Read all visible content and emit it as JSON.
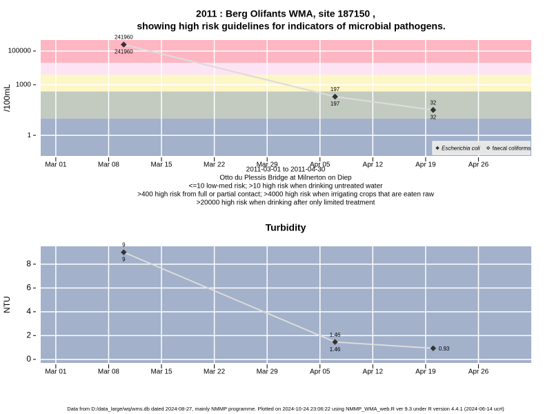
{
  "chart_data": [
    {
      "type": "line",
      "title": "2011 : Berg Olifants WMA, site 187150 ,",
      "subtitle": "showing high risk guidelines for indicators of microbial pathogens.",
      "ylabel": "/100mL",
      "log_y": true,
      "ylim": [
        0.06,
        450000
      ],
      "yticks": [
        1,
        1000,
        100000
      ],
      "xlim": [
        "2011-02-27",
        "2011-05-03"
      ],
      "xticks": [
        {
          "value": "2011-03-01",
          "label": "Mar 01"
        },
        {
          "value": "2011-03-08",
          "label": "Mar 08"
        },
        {
          "value": "2011-03-15",
          "label": "Mar 15"
        },
        {
          "value": "2011-03-22",
          "label": "Mar 22"
        },
        {
          "value": "2011-03-29",
          "label": "Mar 29"
        },
        {
          "value": "2011-04-05",
          "label": "Apr 05"
        },
        {
          "value": "2011-04-12",
          "label": "Apr 12"
        },
        {
          "value": "2011-04-19",
          "label": "Apr 19"
        },
        {
          "value": "2011-04-26",
          "label": "Apr 26"
        }
      ],
      "x": [
        "2011-03-10",
        "2011-04-07",
        "2011-04-20"
      ],
      "series": [
        {
          "name": "Escherichia coli",
          "color": "#333333",
          "marker": "filled",
          "values": [
            241960,
            197,
            32
          ]
        },
        {
          "name": "faecal coliforms",
          "color": "#333333",
          "marker": "open",
          "values": [
            241960,
            197,
            32
          ]
        }
      ],
      "line_color": "#dcdcdc",
      "thresholds": [
        10,
        400,
        4000,
        20000
      ],
      "band_colors": [
        "#a3b1cb",
        "#c3cbc0",
        "#fdf6c6",
        "#fde4f4",
        "#fdb6c2"
      ],
      "grid": true,
      "legend": "bottom-right",
      "notes": [
        "2011-03-01 to 2011-04-30",
        "Otto du Plessis Bridge at Milnerton on Diep",
        "<=10 low-med risk; >10 high risk when drinking untreated water",
        ">400 high risk from full or partial contact; >4000 high risk when irrigating crops that are eaten raw",
        ">20000 high risk when drinking after only limited treatment"
      ]
    },
    {
      "type": "line",
      "title": "Turbidity",
      "ylabel": "NTU",
      "log_y": false,
      "ylim": [
        -0.3,
        9.5
      ],
      "yticks": [
        0,
        2,
        4,
        6,
        8
      ],
      "xlim": [
        "2011-02-27",
        "2011-05-03"
      ],
      "xticks": [
        {
          "value": "2011-03-01",
          "label": "Mar 01"
        },
        {
          "value": "2011-03-08",
          "label": "Mar 08"
        },
        {
          "value": "2011-03-15",
          "label": "Mar 15"
        },
        {
          "value": "2011-03-22",
          "label": "Mar 22"
        },
        {
          "value": "2011-03-29",
          "label": "Mar 29"
        },
        {
          "value": "2011-04-05",
          "label": "Apr 05"
        },
        {
          "value": "2011-04-12",
          "label": "Apr 12"
        },
        {
          "value": "2011-04-19",
          "label": "Apr 19"
        },
        {
          "value": "2011-04-26",
          "label": "Apr 26"
        }
      ],
      "x": [
        "2011-03-10",
        "2011-04-07",
        "2011-04-20"
      ],
      "series": [
        {
          "color": "#333333",
          "marker": "filled",
          "values": [
            9,
            1.46,
            0.93
          ],
          "label_position": [
            "both",
            "both",
            "right"
          ]
        }
      ],
      "line_color": "#dcdcdc",
      "background": "#a3b1cb",
      "grid": true
    }
  ],
  "footer": "Data from D:/data_large/wq/wms.db dated 2024-08-27, mainly NMMP programme. Plotted on 2024-10-24 23:06:22 using NMMP_WMA_web.R ver 9.3 under R version 4.4.1 (2024-06-14 ucrt)"
}
